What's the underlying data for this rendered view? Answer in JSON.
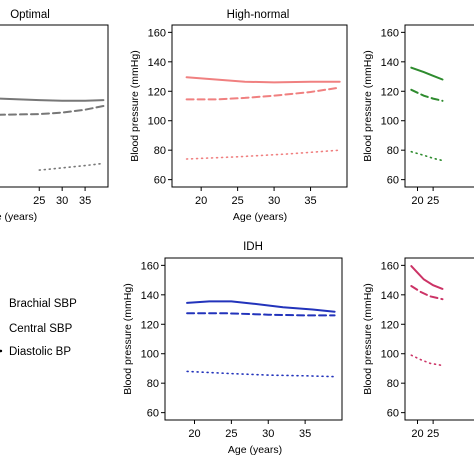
{
  "chart_data": [
    {
      "type": "line",
      "title": "Optimal",
      "xlabel": "Age (years)",
      "ylabel": "",
      "xlim": [
        16,
        40
      ],
      "ylim": [
        55,
        165
      ],
      "yticks": [],
      "xticks_visible": [
        "25",
        "30",
        "35"
      ],
      "color": "#777777",
      "series": [
        {
          "line": "solid",
          "points": [
            [
              16,
              115
            ],
            [
              25,
              114
            ],
            [
              30,
              113.5
            ],
            [
              35,
              113.5
            ],
            [
              39,
              114
            ]
          ]
        },
        {
          "line": "dashed",
          "points": [
            [
              16,
              104
            ],
            [
              25,
              104.5
            ],
            [
              30,
              105.5
            ],
            [
              35,
              107.5
            ],
            [
              39,
              110
            ]
          ]
        },
        {
          "line": "dotted",
          "points": [
            [
              25,
              66.5
            ],
            [
              30,
              68
            ],
            [
              35,
              69.5
            ],
            [
              39,
              71
            ]
          ]
        }
      ]
    },
    {
      "type": "line",
      "title": "High-normal",
      "xlabel": "Age (years)",
      "ylabel": "Blood pressure (mmHg)",
      "xlim": [
        16,
        40
      ],
      "ylim": [
        55,
        165
      ],
      "xticks": [
        20,
        25,
        30,
        35
      ],
      "yticks": [
        60,
        80,
        100,
        120,
        140,
        160
      ],
      "color": "#f08080",
      "series": [
        {
          "line": "solid",
          "points": [
            [
              18,
              129.5
            ],
            [
              22,
              128
            ],
            [
              26,
              126.5
            ],
            [
              30,
              126
            ],
            [
              35,
              126.5
            ],
            [
              39,
              126.5
            ]
          ]
        },
        {
          "line": "dashed",
          "points": [
            [
              18,
              114.5
            ],
            [
              22,
              114.5
            ],
            [
              26,
              115.5
            ],
            [
              30,
              117
            ],
            [
              35,
              119.5
            ],
            [
              39,
              122.5
            ]
          ]
        },
        {
          "line": "dotted",
          "points": [
            [
              18,
              74
            ],
            [
              25,
              75.5
            ],
            [
              32,
              77.5
            ],
            [
              39,
              80
            ]
          ]
        }
      ]
    },
    {
      "type": "line",
      "title": "",
      "xlabel": "",
      "ylabel": "Blood pressure (mmHg)",
      "xlim": [
        16,
        40
      ],
      "ylim": [
        55,
        165
      ],
      "xticks_visible": [
        "20",
        "25"
      ],
      "yticks": [
        60,
        80,
        100,
        120,
        140,
        160
      ],
      "color": "#2e8b2e",
      "series": [
        {
          "line": "solid",
          "points": [
            [
              18,
              136
            ],
            [
              22,
              133
            ],
            [
              25,
              130.5
            ],
            [
              28,
              128
            ]
          ]
        },
        {
          "line": "dashed",
          "points": [
            [
              18,
              121
            ],
            [
              22,
              117
            ],
            [
              25,
              115
            ],
            [
              28,
              113.5
            ]
          ]
        },
        {
          "line": "dotted",
          "points": [
            [
              18,
              79
            ],
            [
              22,
              76.5
            ],
            [
              25,
              74.5
            ],
            [
              28,
              73
            ]
          ]
        }
      ]
    },
    {
      "type": "line",
      "title": "IDH",
      "xlabel": "Age (years)",
      "ylabel": "Blood pressure (mmHg)",
      "xlim": [
        16,
        40
      ],
      "ylim": [
        55,
        165
      ],
      "xticks": [
        20,
        25,
        30,
        35
      ],
      "yticks": [
        60,
        80,
        100,
        120,
        140,
        160
      ],
      "color": "#2233bb",
      "series": [
        {
          "line": "solid",
          "points": [
            [
              19,
              134.5
            ],
            [
              22,
              135.5
            ],
            [
              25,
              135.5
            ],
            [
              28,
              134
            ],
            [
              32,
              131.5
            ],
            [
              36,
              130
            ],
            [
              39,
              128.5
            ]
          ]
        },
        {
          "line": "dashed",
          "points": [
            [
              19,
              127.5
            ],
            [
              24,
              127.5
            ],
            [
              30,
              126.5
            ],
            [
              35,
              126
            ],
            [
              39,
              126
            ]
          ]
        },
        {
          "line": "dotted",
          "points": [
            [
              19,
              88
            ],
            [
              25,
              86.5
            ],
            [
              30,
              85.5
            ],
            [
              35,
              85
            ],
            [
              39,
              84.5
            ]
          ]
        }
      ]
    },
    {
      "type": "line",
      "title": "",
      "xlabel": "",
      "ylabel": "Blood pressure (mmHg)",
      "xlim": [
        16,
        40
      ],
      "ylim": [
        55,
        165
      ],
      "xticks_visible": [
        "20",
        "25"
      ],
      "yticks": [
        60,
        80,
        100,
        120,
        140,
        160
      ],
      "color": "#cc3366",
      "series": [
        {
          "line": "solid",
          "points": [
            [
              18,
              159.5
            ],
            [
              20,
              155
            ],
            [
              22,
              150.5
            ],
            [
              25,
              146.5
            ],
            [
              28,
              144
            ]
          ]
        },
        {
          "line": "dashed",
          "points": [
            [
              18,
              146
            ],
            [
              21,
              142
            ],
            [
              24,
              139
            ],
            [
              28,
              137
            ]
          ]
        },
        {
          "line": "dotted",
          "points": [
            [
              18,
              99
            ],
            [
              21,
              96
            ],
            [
              24,
              93.5
            ],
            [
              28,
              92
            ]
          ]
        }
      ]
    }
  ],
  "legend": {
    "entries": [
      {
        "label": "Brachial SBP",
        "line": "solid"
      },
      {
        "label": "Central SBP",
        "line": "dashed"
      },
      {
        "label": "Diastolic BP",
        "line": "dotted"
      }
    ]
  }
}
